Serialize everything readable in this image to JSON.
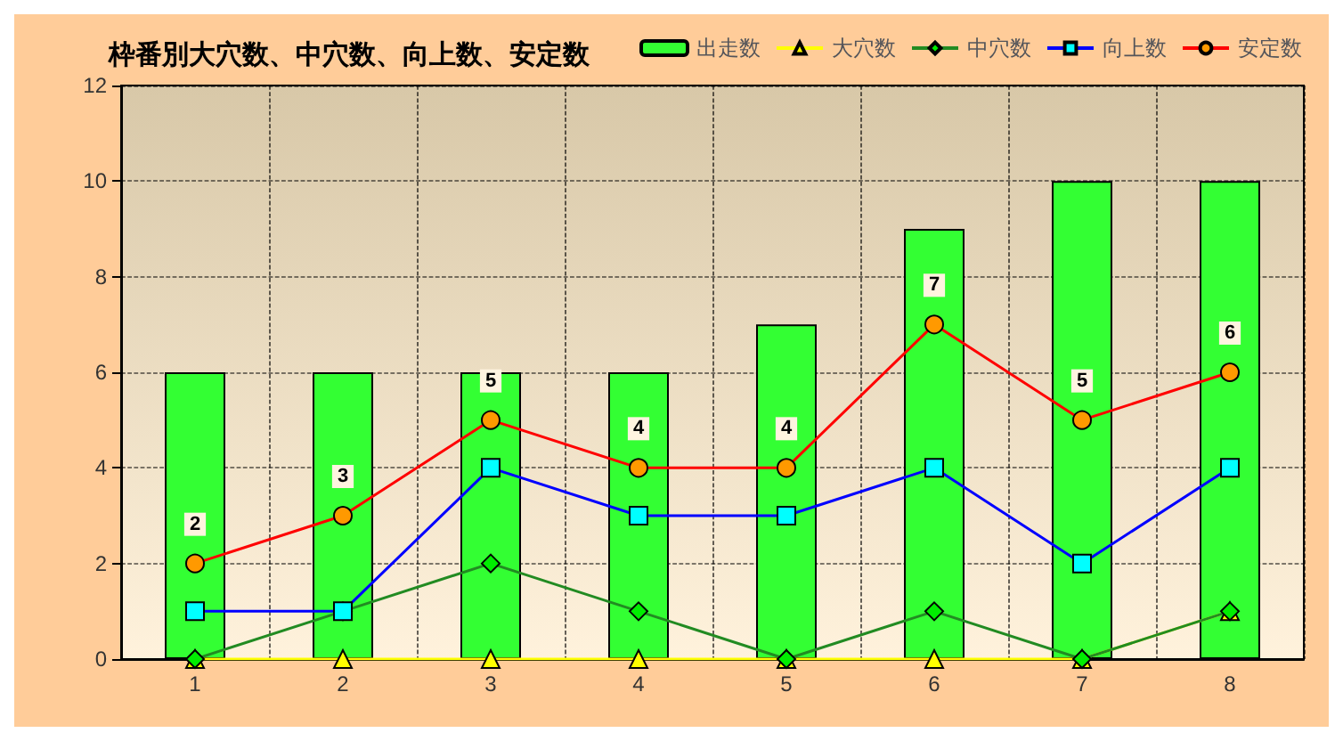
{
  "chart_data": {
    "type": "bar",
    "title": "枠番別大穴数、中穴数、向上数、安定数",
    "categories": [
      "1",
      "2",
      "3",
      "4",
      "5",
      "6",
      "7",
      "8"
    ],
    "series": [
      {
        "name": "出走数",
        "color": "#33ff33",
        "values": [
          6,
          6,
          6,
          6,
          7,
          9,
          10,
          10
        ]
      },
      {
        "name": "大穴数",
        "type": "line",
        "color": "#ffff00",
        "marker": "triangle",
        "values": [
          0,
          0,
          0,
          0,
          0,
          0,
          0,
          1
        ]
      },
      {
        "name": "中穴数",
        "type": "line",
        "color": "#228b22",
        "marker": "diamond",
        "values": [
          0,
          1,
          2,
          1,
          0,
          1,
          0,
          1
        ]
      },
      {
        "name": "向上数",
        "type": "line",
        "color": "#0000ff",
        "marker": "square",
        "values": [
          1,
          1,
          4,
          3,
          3,
          4,
          2,
          4
        ]
      },
      {
        "name": "安定数",
        "type": "line",
        "color": "#ff0000",
        "marker": "circle",
        "values": [
          2,
          3,
          5,
          4,
          4,
          7,
          5,
          6
        ],
        "value_labels": [
          "2",
          "3",
          "5",
          "4",
          "4",
          "7",
          "5",
          "6"
        ]
      }
    ],
    "ylim": [
      0,
      12
    ],
    "yticks": [
      0,
      2,
      4,
      6,
      8,
      10,
      12
    ],
    "grid": true,
    "legend": "top right"
  }
}
